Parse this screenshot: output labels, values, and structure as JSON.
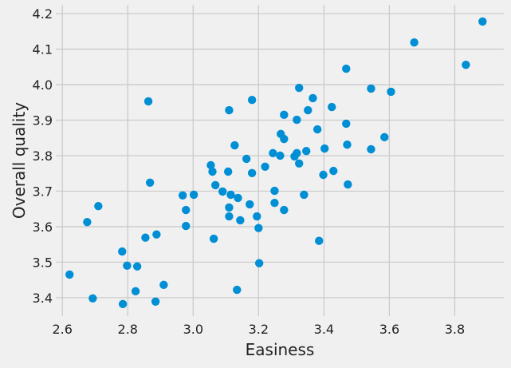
{
  "chart_data": {
    "type": "scatter",
    "title": "",
    "xlabel": "Easiness",
    "ylabel": "Overall quality",
    "xlim": [
      2.58,
      3.95
    ],
    "ylim": [
      3.348,
      4.225
    ],
    "xticks": [
      "2.6",
      "2.8",
      "3.0",
      "3.2",
      "3.4",
      "3.6",
      "3.8"
    ],
    "yticks": [
      "3.4",
      "3.5",
      "3.6",
      "3.7",
      "3.8",
      "3.9",
      "4.0",
      "4.1",
      "4.2"
    ],
    "grid": true,
    "colors": {
      "point": "#008fd5",
      "background": "#f0f0f0",
      "grid": "#cbcbcb"
    },
    "points": [
      [
        2.622,
        3.465
      ],
      [
        2.676,
        3.613
      ],
      [
        2.693,
        3.398
      ],
      [
        2.71,
        3.658
      ],
      [
        2.783,
        3.53
      ],
      [
        2.785,
        3.382
      ],
      [
        2.798,
        3.49
      ],
      [
        2.824,
        3.418
      ],
      [
        2.829,
        3.488
      ],
      [
        2.854,
        3.569
      ],
      [
        2.863,
        3.953
      ],
      [
        2.868,
        3.724
      ],
      [
        2.885,
        3.389
      ],
      [
        2.888,
        3.578
      ],
      [
        2.91,
        3.436
      ],
      [
        2.968,
        3.688
      ],
      [
        2.978,
        3.647
      ],
      [
        2.978,
        3.602
      ],
      [
        3.002,
        3.69
      ],
      [
        3.054,
        3.773
      ],
      [
        3.059,
        3.755
      ],
      [
        3.063,
        3.566
      ],
      [
        3.068,
        3.717
      ],
      [
        3.09,
        3.699
      ],
      [
        3.11,
        3.928
      ],
      [
        3.107,
        3.755
      ],
      [
        3.115,
        3.69
      ],
      [
        3.11,
        3.654
      ],
      [
        3.11,
        3.629
      ],
      [
        3.127,
        3.829
      ],
      [
        3.137,
        3.681
      ],
      [
        3.144,
        3.618
      ],
      [
        3.134,
        3.422
      ],
      [
        3.163,
        3.791
      ],
      [
        3.173,
        3.663
      ],
      [
        3.18,
        3.957
      ],
      [
        3.18,
        3.751
      ],
      [
        3.195,
        3.629
      ],
      [
        3.2,
        3.596
      ],
      [
        3.202,
        3.497
      ],
      [
        3.22,
        3.769
      ],
      [
        3.244,
        3.807
      ],
      [
        3.249,
        3.701
      ],
      [
        3.249,
        3.667
      ],
      [
        3.266,
        3.8
      ],
      [
        3.268,
        3.861
      ],
      [
        3.278,
        3.915
      ],
      [
        3.278,
        3.847
      ],
      [
        3.278,
        3.647
      ],
      [
        3.31,
        3.798
      ],
      [
        3.317,
        3.901
      ],
      [
        3.317,
        3.807
      ],
      [
        3.324,
        3.991
      ],
      [
        3.324,
        3.778
      ],
      [
        3.339,
        3.69
      ],
      [
        3.346,
        3.813
      ],
      [
        3.351,
        3.928
      ],
      [
        3.366,
        3.962
      ],
      [
        3.38,
        3.874
      ],
      [
        3.385,
        3.56
      ],
      [
        3.398,
        3.746
      ],
      [
        3.402,
        3.82
      ],
      [
        3.424,
        3.937
      ],
      [
        3.429,
        3.757
      ],
      [
        3.468,
        4.045
      ],
      [
        3.468,
        3.89
      ],
      [
        3.471,
        3.831
      ],
      [
        3.473,
        3.719
      ],
      [
        3.544,
        3.989
      ],
      [
        3.544,
        3.818
      ],
      [
        3.585,
        3.852
      ],
      [
        3.605,
        3.98
      ],
      [
        3.676,
        4.119
      ],
      [
        3.834,
        4.056
      ],
      [
        3.885,
        4.178
      ]
    ]
  }
}
